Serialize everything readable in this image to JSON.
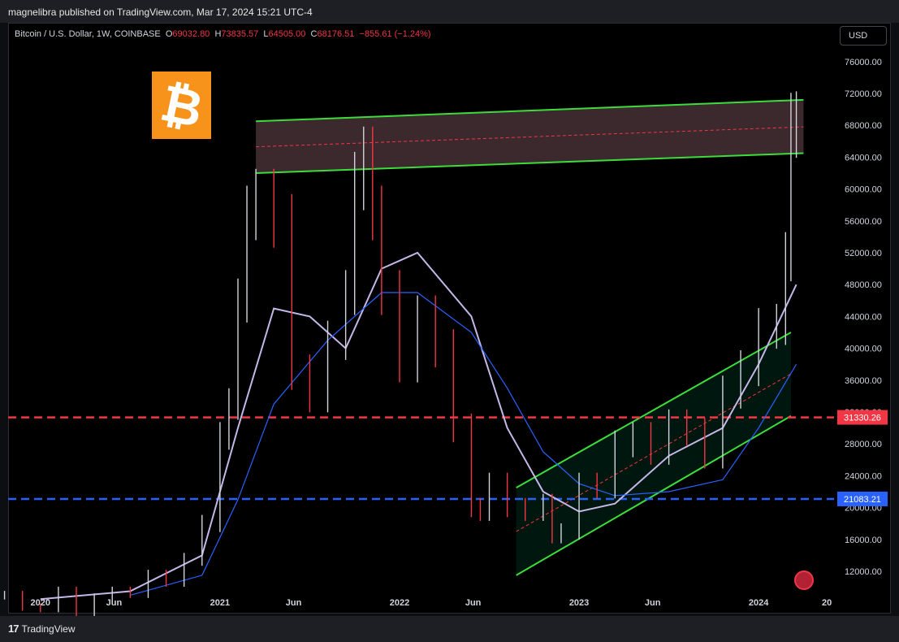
{
  "header": {
    "published_by": "magnelibra published on TradingView.com, Mar 17, 2024 15:21 UTC-4"
  },
  "legend": {
    "symbol": "Bitcoin / U.S. Dollar, 1W, COINBASE",
    "o_label": "O",
    "o": "69032.80",
    "h_label": "H",
    "h": "73835.57",
    "l_label": "L",
    "l": "64505.00",
    "c_label": "C",
    "c": "68176.51",
    "change": "−855.61 (−1.24%)"
  },
  "currency_button": "USD",
  "logo_symbol": "₿",
  "footer": {
    "brand": "TradingView",
    "brand_mark": "17"
  },
  "colors": {
    "up": "#d1d4dc",
    "down": "#f23645",
    "channel": "#3cdc3c",
    "red_level": "#f23645",
    "blue_level": "#2962ff",
    "fast_ma": "#c5b8e8",
    "slow_ma": "#2962ff",
    "logo": "#f7931a"
  },
  "chart_data": {
    "type": "line",
    "title": "Bitcoin / U.S. Dollar, 1W, COINBASE",
    "x_tick_labels": [
      "2020",
      "Jun",
      "2021",
      "Jun",
      "2022",
      "Jun",
      "2023",
      "Jun",
      "2024",
      "20"
    ],
    "y_tick_labels": [
      "12000.00",
      "16000.00",
      "20000.00",
      "24000.00",
      "28000.00",
      "32000.00",
      "36000.00",
      "40000.00",
      "44000.00",
      "48000.00",
      "52000.00",
      "56000.00",
      "60000.00",
      "64000.00",
      "68000.00",
      "72000.00",
      "76000.00"
    ],
    "ylim": [
      9000,
      78000
    ],
    "horizontal_levels": [
      {
        "label": "31330.26",
        "value": 31330.26,
        "color": "#f23645"
      },
      {
        "label": "21083.21",
        "value": 21083.21,
        "color": "#2962ff"
      }
    ],
    "price_series": {
      "x": [
        2019.8,
        2019.9,
        2020.0,
        2020.1,
        2020.2,
        2020.3,
        2020.4,
        2020.5,
        2020.6,
        2020.7,
        2020.8,
        2020.9,
        2021.0,
        2021.05,
        2021.1,
        2021.15,
        2021.2,
        2021.3,
        2021.4,
        2021.5,
        2021.6,
        2021.7,
        2021.75,
        2021.8,
        2021.85,
        2021.9,
        2022.0,
        2022.1,
        2022.2,
        2022.3,
        2022.4,
        2022.45,
        2022.5,
        2022.6,
        2022.7,
        2022.8,
        2022.85,
        2022.9,
        2023.0,
        2023.1,
        2023.2,
        2023.3,
        2023.4,
        2023.5,
        2023.6,
        2023.7,
        2023.8,
        2023.9,
        2024.0,
        2024.1,
        2024.15,
        2024.18,
        2024.21
      ],
      "close": [
        9000,
        7500,
        7300,
        9500,
        6500,
        8700,
        9500,
        9200,
        11500,
        10700,
        13500,
        18000,
        29000,
        33000,
        46000,
        57000,
        59000,
        56000,
        37000,
        34000,
        41000,
        47000,
        61000,
        64000,
        57000,
        47000,
        38000,
        44000,
        40000,
        30000,
        20000,
        19500,
        23000,
        20000,
        19500,
        20500,
        16500,
        17000,
        23000,
        22500,
        28000,
        29000,
        27000,
        30500,
        29500,
        26500,
        34500,
        37500,
        42500,
        43000,
        51500,
        68000,
        68176.51
      ]
    },
    "series": [
      {
        "x": [
          2020.0,
          2020.5,
          2020.9,
          2021.1,
          2021.3,
          2021.5,
          2021.7,
          2021.9,
          2022.1,
          2022.4,
          2022.6,
          2022.8,
          2023.0,
          2023.2,
          2023.5,
          2023.8,
          2024.0,
          2024.21
        ],
        "values": [
          8500,
          9500,
          14000,
          30000,
          45000,
          44000,
          40000,
          50000,
          52000,
          44000,
          30000,
          22000,
          19500,
          20500,
          26500,
          30000,
          38000,
          48000
        ]
      },
      {
        "x": [
          2020.5,
          2020.9,
          2021.1,
          2021.3,
          2021.6,
          2021.9,
          2022.1,
          2022.4,
          2022.6,
          2022.8,
          2023.0,
          2023.2,
          2023.5,
          2023.8,
          2024.0,
          2024.21
        ],
        "values": [
          9000,
          11500,
          21000,
          33000,
          41000,
          47000,
          47000,
          42000,
          35000,
          27000,
          23000,
          21500,
          22000,
          23500,
          30000,
          38000
        ]
      }
    ],
    "channels": [
      {
        "upper": [
          [
            2021.2,
            68500
          ],
          [
            2024.25,
            71200
          ]
        ],
        "lower": [
          [
            2021.2,
            62000
          ],
          [
            2024.25,
            64500
          ]
        ],
        "mid": [
          [
            2021.2,
            65300
          ],
          [
            2024.25,
            67800
          ]
        ]
      },
      {
        "upper": [
          [
            2022.65,
            22500
          ],
          [
            2024.18,
            42000
          ]
        ],
        "lower": [
          [
            2022.65,
            11500
          ],
          [
            2024.18,
            31500
          ]
        ],
        "mid": [
          [
            2022.65,
            17000
          ],
          [
            2024.18,
            36800
          ]
        ]
      }
    ]
  }
}
